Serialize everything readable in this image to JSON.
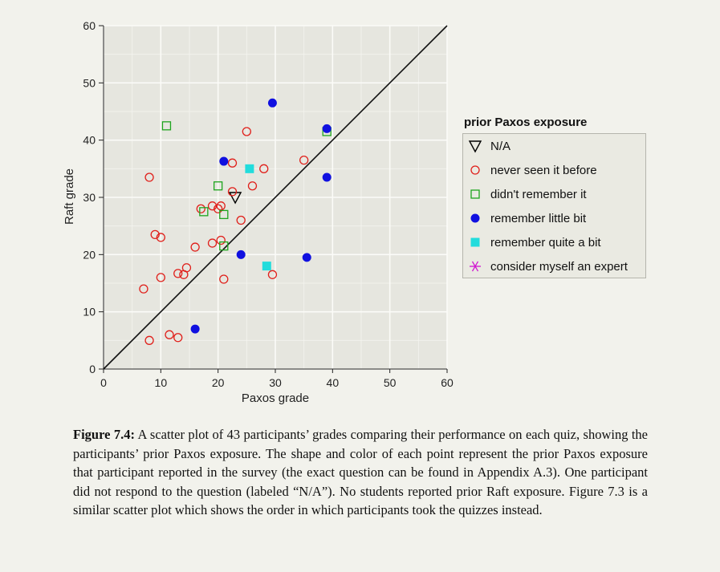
{
  "chart_data": {
    "type": "scatter",
    "xlabel": "Paxos grade",
    "ylabel": "Raft grade",
    "xlim": [
      0,
      60
    ],
    "ylim": [
      0,
      60
    ],
    "xticks": [
      0,
      10,
      20,
      30,
      40,
      50,
      60
    ],
    "yticks": [
      0,
      10,
      20,
      30,
      40,
      50,
      60
    ],
    "grid": true,
    "reference_line": "y = x",
    "legend": {
      "title": "prior Paxos exposure",
      "placement": "right"
    },
    "series": [
      {
        "name": "N/A",
        "marker": "triangle-down-open",
        "color": "#000000",
        "points": [
          [
            23,
            30
          ]
        ]
      },
      {
        "name": "never seen it before",
        "marker": "circle-open",
        "color": "#e0201b",
        "points": [
          [
            8,
            33.5
          ],
          [
            7,
            14
          ],
          [
            8,
            5
          ],
          [
            9,
            23.5
          ],
          [
            10,
            23
          ],
          [
            10,
            16
          ],
          [
            11.5,
            6
          ],
          [
            13,
            16.7
          ],
          [
            13,
            5.5
          ],
          [
            14,
            16.5
          ],
          [
            14.5,
            17.7
          ],
          [
            16,
            21.3
          ],
          [
            17,
            28
          ],
          [
            19,
            28.5
          ],
          [
            19,
            22
          ],
          [
            20,
            28
          ],
          [
            20.5,
            28.5
          ],
          [
            20.5,
            22.5
          ],
          [
            21,
            15.7
          ],
          [
            22.5,
            36
          ],
          [
            22.5,
            31
          ],
          [
            24,
            26
          ],
          [
            25,
            41.5
          ],
          [
            26,
            32
          ],
          [
            28,
            35
          ],
          [
            29.5,
            16.5
          ],
          [
            35,
            36.5
          ]
        ]
      },
      {
        "name": "didn't remember it",
        "marker": "square-open",
        "color": "#1ea51e",
        "points": [
          [
            11,
            42.5
          ],
          [
            17.5,
            27.5
          ],
          [
            20,
            32
          ],
          [
            21,
            27
          ],
          [
            21,
            21.5
          ],
          [
            39,
            41.5
          ]
        ]
      },
      {
        "name": "remember little bit",
        "marker": "circle-filled",
        "color": "#1010e0",
        "points": [
          [
            16,
            7
          ],
          [
            21,
            36.3
          ],
          [
            24,
            20
          ],
          [
            29.5,
            46.5
          ],
          [
            35.5,
            19.5
          ],
          [
            39,
            42
          ],
          [
            39,
            33.5
          ]
        ]
      },
      {
        "name": "remember quite a bit",
        "marker": "square-filled",
        "color": "#22dcdc",
        "points": [
          [
            25.5,
            35
          ],
          [
            28.5,
            18
          ]
        ]
      },
      {
        "name": "consider myself an expert",
        "marker": "asterisk",
        "color": "#d016d0",
        "points": []
      }
    ]
  },
  "caption": {
    "label": "Figure 7.4:",
    "text": " A scatter plot of 43 participants’ grades comparing their performance on each quiz, showing the participants’ prior Paxos exposure. The shape and color of each point represent the prior Paxos exposure that participant reported in the survey (the exact question can be found in Appendix A.3). One participant did not respond to the question (labeled “N/A”). No students reported prior Raft exposure. Figure 7.3 is a similar scatter plot which shows the order in which participants took the quizzes instead."
  }
}
